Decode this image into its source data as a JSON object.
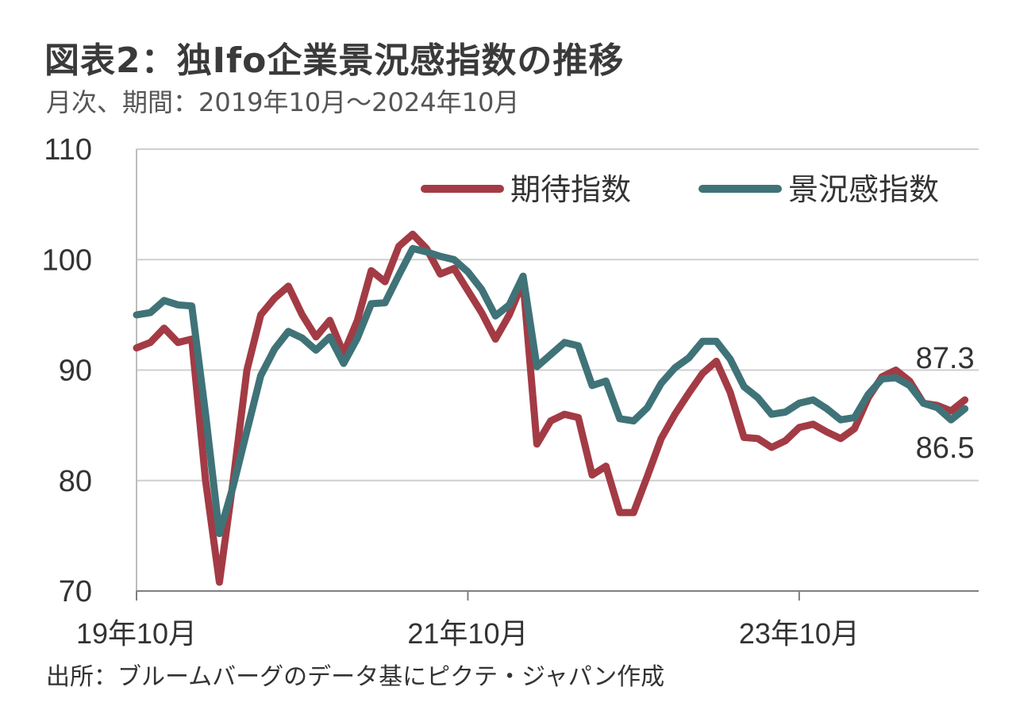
{
  "header": {
    "title": "図表2：独Ifo企業景況感指数の推移",
    "subtitle": "月次、期間：2019年10月～2024年10月"
  },
  "footer": {
    "source": "出所：ブルームバーグのデータ基にピクテ・ジャパン作成"
  },
  "colors": {
    "expectations": "#A33B45",
    "business_climate": "#3F7378"
  },
  "chart_data": {
    "type": "line",
    "x": [
      "2019-10",
      "2019-11",
      "2019-12",
      "2020-01",
      "2020-02",
      "2020-03",
      "2020-04",
      "2020-05",
      "2020-06",
      "2020-07",
      "2020-08",
      "2020-09",
      "2020-10",
      "2020-11",
      "2020-12",
      "2021-01",
      "2021-02",
      "2021-03",
      "2021-04",
      "2021-05",
      "2021-06",
      "2021-07",
      "2021-08",
      "2021-09",
      "2021-10",
      "2021-11",
      "2021-12",
      "2022-01",
      "2022-02",
      "2022-03",
      "2022-04",
      "2022-05",
      "2022-06",
      "2022-07",
      "2022-08",
      "2022-09",
      "2022-10",
      "2022-11",
      "2022-12",
      "2023-01",
      "2023-02",
      "2023-03",
      "2023-04",
      "2023-05",
      "2023-06",
      "2023-07",
      "2023-08",
      "2023-09",
      "2023-10",
      "2023-11",
      "2023-12",
      "2024-01",
      "2024-02",
      "2024-03",
      "2024-04",
      "2024-05",
      "2024-06",
      "2024-07",
      "2024-08",
      "2024-09",
      "2024-10"
    ],
    "x_ticks": [
      {
        "value": "2019-10",
        "label": "19年10月"
      },
      {
        "value": "2021-10",
        "label": "21年10月"
      },
      {
        "value": "2023-10",
        "label": "23年10月"
      }
    ],
    "ylim": [
      70,
      110
    ],
    "y_ticks": [
      70,
      80,
      90,
      100,
      110
    ],
    "grid": true,
    "legend_position": "top-right",
    "series": [
      {
        "name": "期待指数",
        "color": "#A33B45",
        "values": [
          92.0,
          92.5,
          93.8,
          92.5,
          92.8,
          80.0,
          70.8,
          80.0,
          90.0,
          95.0,
          96.5,
          97.6,
          95.0,
          93.0,
          94.5,
          91.5,
          94.5,
          99.0,
          98.0,
          101.2,
          102.3,
          101.0,
          98.7,
          99.2,
          97.2,
          95.2,
          92.8,
          95.0,
          98.0,
          83.3,
          85.4,
          86.0,
          85.7,
          80.5,
          81.3,
          77.1,
          77.1,
          80.4,
          83.8,
          86.0,
          87.9,
          89.7,
          90.8,
          88.0,
          83.9,
          83.8,
          83.0,
          83.6,
          84.8,
          85.1,
          84.4,
          83.8,
          84.7,
          87.5,
          89.4,
          90.0,
          89.0,
          87.0,
          86.8,
          86.3,
          87.3
        ]
      },
      {
        "name": "景況感指数",
        "color": "#3F7378",
        "values": [
          95.0,
          95.2,
          96.3,
          95.9,
          95.8,
          86.0,
          75.2,
          79.5,
          84.5,
          89.5,
          91.9,
          93.5,
          92.9,
          91.8,
          93.0,
          90.6,
          92.9,
          96.0,
          96.1,
          98.6,
          101.0,
          100.7,
          100.3,
          100.0,
          98.9,
          97.3,
          94.9,
          95.9,
          98.5,
          90.3,
          91.4,
          92.5,
          92.2,
          88.6,
          89.0,
          85.6,
          85.4,
          86.6,
          88.8,
          90.2,
          91.1,
          92.6,
          92.6,
          91.0,
          88.5,
          87.5,
          86.0,
          86.2,
          87.0,
          87.3,
          86.5,
          85.5,
          85.7,
          87.8,
          89.2,
          89.3,
          88.6,
          87.0,
          86.6,
          85.5,
          86.5
        ]
      }
    ],
    "annotations": [
      {
        "series": "期待指数",
        "x": "2024-10",
        "value": 87.3,
        "text": "87.3"
      },
      {
        "series": "景況感指数",
        "x": "2024-10",
        "value": 86.5,
        "text": "86.5"
      }
    ]
  }
}
